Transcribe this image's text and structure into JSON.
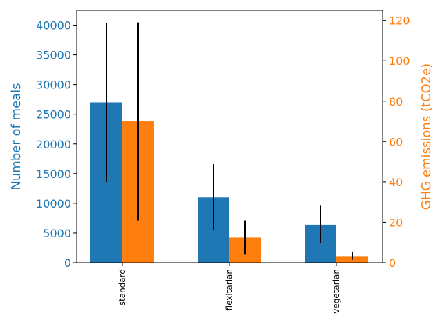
{
  "chart_data": {
    "type": "bar",
    "categories": [
      "standard",
      "flexitarian",
      "vegetarian"
    ],
    "series": [
      {
        "axis": "left",
        "color": "#1f77b4",
        "values": [
          27000,
          11000,
          6400
        ],
        "error_low": [
          13600,
          5600,
          3300
        ],
        "error_high": [
          40300,
          16600,
          9600
        ]
      },
      {
        "axis": "right",
        "color": "#ff7f0e",
        "values": [
          70,
          12.5,
          3.3
        ],
        "error_low": [
          21,
          4,
          1.5
        ],
        "error_high": [
          119,
          21,
          5.5
        ]
      }
    ],
    "y_left": {
      "label": "Number of meals",
      "ylim": [
        0,
        42500
      ],
      "ticks": [
        "0",
        "5000",
        "10000",
        "15000",
        "20000",
        "25000",
        "30000",
        "35000",
        "40000"
      ],
      "color": "#1f77b4"
    },
    "y_right": {
      "label": "GHG emissions (tCO2e)",
      "ylim": [
        0,
        125
      ],
      "ticks": [
        "0",
        "20",
        "40",
        "60",
        "80",
        "100",
        "120"
      ],
      "color": "#ff7f0e"
    },
    "xlabel": "",
    "title": "",
    "grid": false,
    "legend": "none"
  }
}
